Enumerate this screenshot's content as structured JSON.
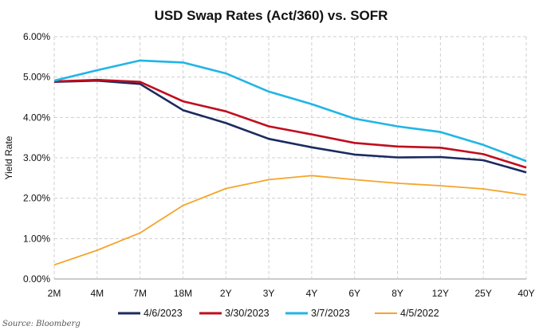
{
  "chart_data": {
    "type": "line",
    "title": "USD Swap Rates (Act/360) vs. SOFR",
    "xlabel": "",
    "ylabel": "Yield Rate",
    "categories": [
      "2M",
      "4M",
      "7M",
      "18M",
      "2Y",
      "3Y",
      "4Y",
      "6Y",
      "8Y",
      "12Y",
      "25Y",
      "40Y"
    ],
    "y_ticks": [
      "0.00%",
      "1.00%",
      "2.00%",
      "3.00%",
      "4.00%",
      "5.00%",
      "6.00%"
    ],
    "ylim": [
      0,
      6
    ],
    "grid": true,
    "legend_position": "bottom",
    "series": [
      {
        "name": "4/6/2023",
        "color": "#1b2a5e",
        "values": [
          4.88,
          4.91,
          4.83,
          4.18,
          3.86,
          3.47,
          3.26,
          3.08,
          3.01,
          3.02,
          2.94,
          2.64
        ]
      },
      {
        "name": "3/30/2023",
        "color": "#c00d1e",
        "values": [
          4.89,
          4.93,
          4.88,
          4.4,
          4.15,
          3.78,
          3.58,
          3.37,
          3.28,
          3.25,
          3.09,
          2.76
        ]
      },
      {
        "name": "3/7/2023",
        "color": "#21b5e6",
        "values": [
          4.91,
          5.17,
          5.41,
          5.36,
          5.09,
          4.64,
          4.33,
          3.97,
          3.78,
          3.64,
          3.32,
          2.92
        ]
      },
      {
        "name": "4/5/2022",
        "color": "#f4a52a",
        "values": [
          0.35,
          0.71,
          1.14,
          1.82,
          2.24,
          2.46,
          2.56,
          2.46,
          2.37,
          2.31,
          2.23,
          2.08
        ]
      }
    ]
  },
  "source": "Source: Bloomberg"
}
